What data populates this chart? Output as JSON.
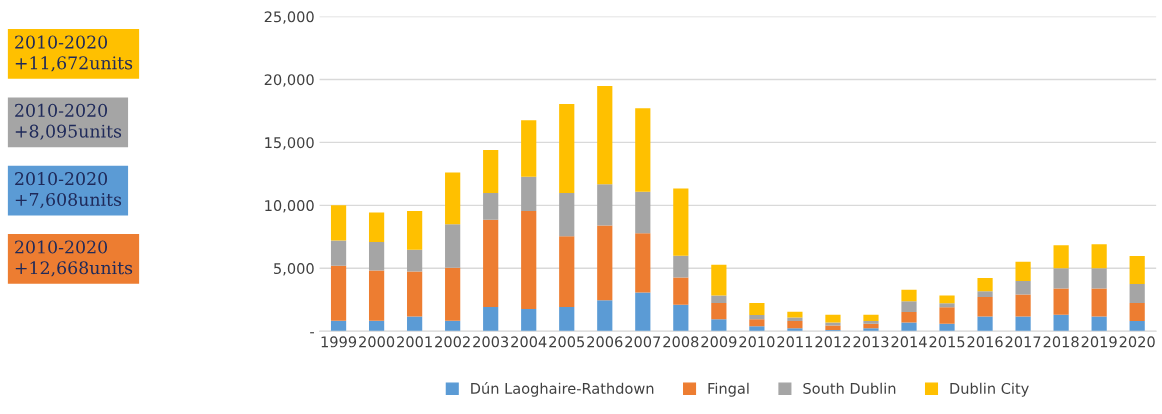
{
  "chart_data": {
    "type": "bar",
    "stacked": true,
    "categories": [
      "1999",
      "2000",
      "2001",
      "2002",
      "2003",
      "2004",
      "2005",
      "2006",
      "2007",
      "2008",
      "2009",
      "2010",
      "2011",
      "2012",
      "2013",
      "2014",
      "2015",
      "2016",
      "2017",
      "2018",
      "2019",
      "2020"
    ],
    "series": [
      {
        "name": "Dún Laoghaire-Rathdown",
        "color": "#5b9bd5",
        "values": [
          830,
          830,
          1170,
          830,
          1930,
          1770,
          1930,
          2450,
          3070,
          2110,
          950,
          390,
          230,
          100,
          230,
          700,
          590,
          1160,
          1160,
          1310,
          1160,
          820
        ]
      },
      {
        "name": "Fingal",
        "color": "#ed7d31",
        "values": [
          4370,
          3990,
          3570,
          4220,
          6920,
          7790,
          5620,
          5940,
          4720,
          2160,
          1290,
          560,
          590,
          360,
          360,
          820,
          1320,
          1550,
          1750,
          2090,
          2240,
          1420
        ]
      },
      {
        "name": "South Dublin",
        "color": "#a5a5a5",
        "values": [
          2000,
          2260,
          1740,
          3440,
          2140,
          2710,
          3440,
          3280,
          3300,
          1720,
          600,
          340,
          260,
          240,
          230,
          850,
          310,
          460,
          1080,
          1600,
          1600,
          1520
        ]
      },
      {
        "name": "Dublin City",
        "color": "#ffc000",
        "values": [
          2800,
          2350,
          3080,
          4110,
          3410,
          4500,
          7060,
          7810,
          6620,
          5340,
          2440,
          950,
          470,
          610,
          490,
          930,
          620,
          1060,
          1530,
          1830,
          1910,
          2220
        ]
      }
    ],
    "ylim": [
      0,
      25000
    ],
    "yticks": [
      {
        "value": 0,
        "label": "-"
      },
      {
        "value": 5000,
        "label": "5,000"
      },
      {
        "value": 10000,
        "label": "10,000"
      },
      {
        "value": 15000,
        "label": "15,000"
      },
      {
        "value": 20000,
        "label": "20,000"
      },
      {
        "value": 25000,
        "label": "25,000"
      }
    ],
    "grid": "y",
    "legend": "bottom",
    "annotations": [
      "2010-2020\n+11,672units",
      "2010-2020\n+8,095units",
      "2010-2020\n+7,608units",
      "2010-2020\n+12,668units"
    ]
  }
}
